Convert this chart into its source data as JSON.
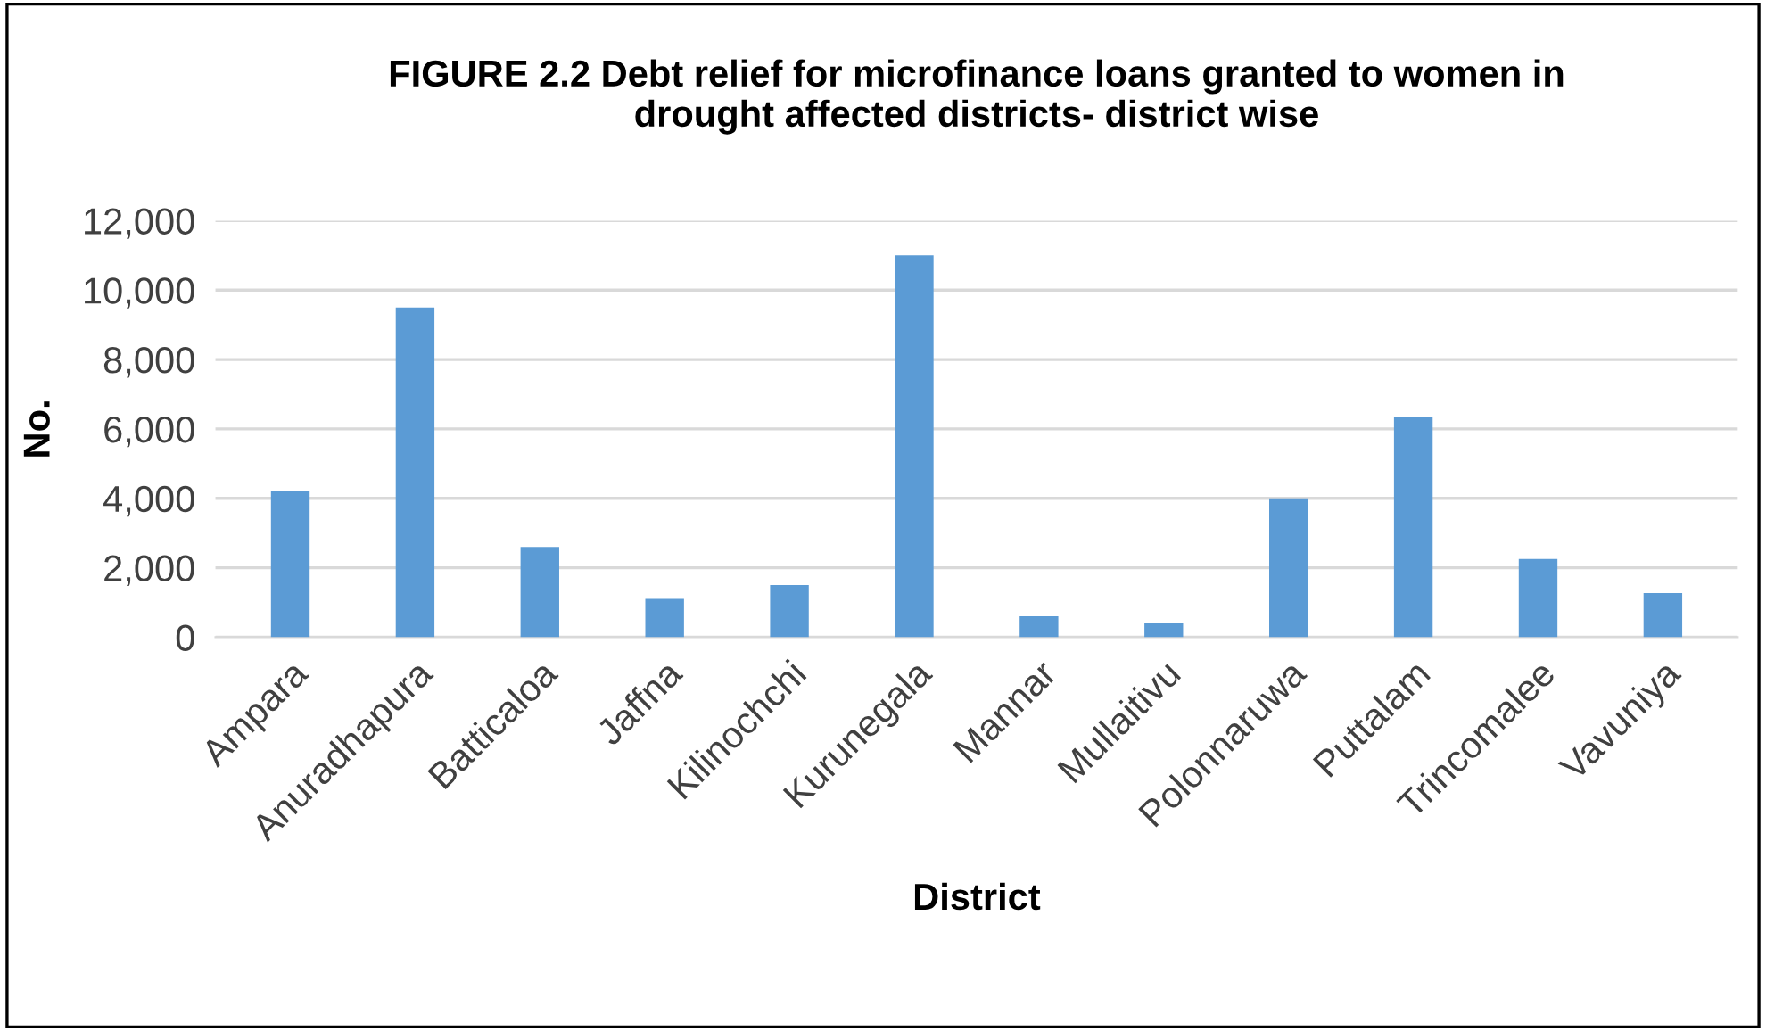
{
  "chart_data": {
    "type": "bar",
    "title": "FIGURE 2.2 Debt relief for microfinance loans granted to women in\ndrought affected districts- district wise",
    "xlabel": "District",
    "ylabel": "No.",
    "categories": [
      "Ampara",
      "Anuradhapura",
      "Batticaloa",
      "Jaffna",
      "Kilinochchi",
      "Kurunegala",
      "Mannar",
      "Mullaitivu",
      "Polonnaruwa",
      "Puttalam",
      "Trincomalee",
      "Vavuniya"
    ],
    "values": [
      4200,
      9500,
      2600,
      1100,
      1500,
      11000,
      600,
      400,
      4000,
      6350,
      2250,
      1270
    ],
    "color": "#5b9bd5",
    "ylim": [
      0,
      12000
    ],
    "yticks": [
      {
        "value": 0,
        "label": "0"
      },
      {
        "value": 2000,
        "label": "2,000"
      },
      {
        "value": 4000,
        "label": "4,000"
      },
      {
        "value": 6000,
        "label": "6,000"
      },
      {
        "value": 8000,
        "label": "8,000"
      },
      {
        "value": 10000,
        "label": "10,000"
      },
      {
        "value": 12000,
        "label": "12,000"
      }
    ],
    "grid": "y",
    "legend": false
  }
}
